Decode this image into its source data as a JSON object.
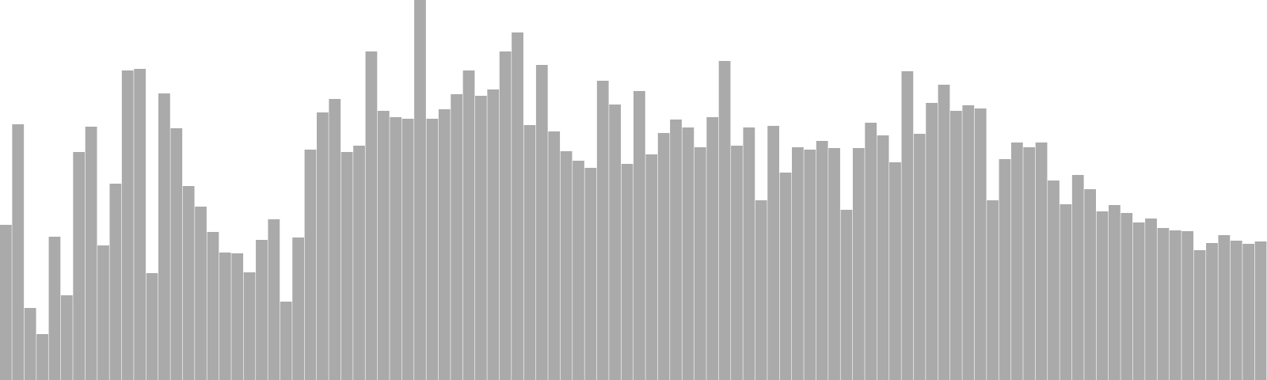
{
  "chart_data": {
    "type": "bar",
    "title": "",
    "xlabel": "",
    "ylabel": "",
    "ylim": [
      0,
      480
    ],
    "grid": false,
    "legend": "none",
    "bar_color": "#aaaaaa",
    "values": [
      196,
      323,
      91,
      58,
      181,
      107,
      288,
      320,
      170,
      248,
      391,
      393,
      135,
      362,
      318,
      245,
      219,
      187,
      161,
      160,
      136,
      177,
      203,
      99,
      180,
      291,
      338,
      355,
      288,
      296,
      415,
      340,
      332,
      330,
      480,
      330,
      342,
      361,
      391,
      359,
      367,
      415,
      439,
      322,
      398,
      314,
      289,
      277,
      268,
      378,
      348,
      273,
      365,
      285,
      312,
      329,
      319,
      294,
      332,
      403,
      296,
      319,
      227,
      321,
      262,
      294,
      291,
      302,
      293,
      215,
      293,
      325,
      309,
      275,
      390,
      311,
      350,
      373,
      340,
      347,
      343,
      227,
      279,
      300,
      294,
      300,
      252,
      222,
      259,
      241,
      213,
      221,
      211,
      199,
      204,
      192,
      189,
      188,
      164,
      173,
      183,
      176,
      172,
      175
    ]
  }
}
